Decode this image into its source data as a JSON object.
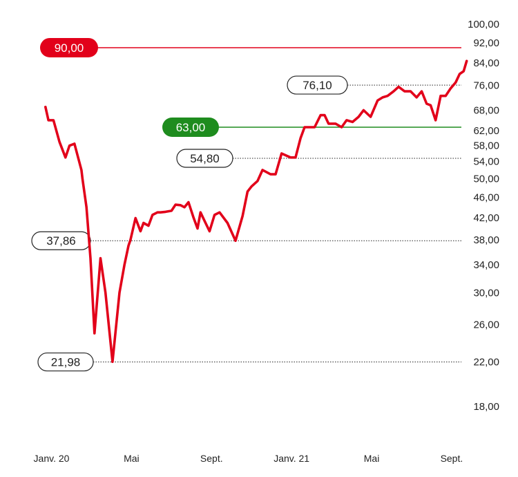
{
  "chart_data": {
    "type": "line",
    "scale": "log",
    "ylim": [
      18,
      100
    ],
    "y_ticks": [
      "100,00",
      "92,00",
      "84,00",
      "76,00",
      "68,00",
      "62,00",
      "58,00",
      "54,00",
      "50,00",
      "46,00",
      "42,00",
      "38,00",
      "34,00",
      "30,00",
      "26,00",
      "22,00",
      "18,00"
    ],
    "y_tick_values": [
      100,
      92,
      84,
      76,
      68,
      62,
      58,
      54,
      50,
      46,
      42,
      38,
      34,
      30,
      26,
      22,
      18
    ],
    "x_ticks": [
      "Janv. 20",
      "Mai",
      "Sept.",
      "Janv. 21",
      "Mai",
      "Sept."
    ],
    "x_tick_months": [
      0,
      4,
      8,
      12,
      16,
      20
    ],
    "x_range_months": [
      -0.5,
      20.9
    ],
    "colors": {
      "line": "#e2001a",
      "target_high": "#e2001a",
      "target_low": "#1e8c1e",
      "ref": "#222222"
    },
    "series": [
      {
        "x": [
          -0.3,
          -0.15,
          0.1,
          0.4,
          0.7,
          0.9,
          1.15,
          1.5,
          1.55,
          1.75,
          1.95,
          2.15,
          2.45,
          2.7,
          3.05,
          3.4,
          3.65,
          3.85,
          3.95,
          4.2,
          4.45,
          4.6,
          4.85,
          5.05,
          5.3,
          5.45,
          5.7,
          6.0,
          6.2,
          6.45,
          6.65,
          6.85,
          7.1,
          7.3,
          7.45,
          7.7,
          7.9,
          8.15,
          8.4,
          8.8,
          9.2,
          9.55,
          9.8,
          10.0,
          10.3,
          10.55,
          10.95,
          11.2,
          11.5,
          11.95,
          12.2,
          12.45,
          12.65,
          12.85,
          13.15,
          13.45,
          13.65,
          13.85,
          14.2,
          14.5,
          14.75,
          15.05,
          15.35,
          15.6,
          15.95,
          16.3,
          16.55,
          16.8,
          17.1,
          17.35,
          17.65,
          17.95,
          18.25,
          18.5,
          18.75,
          18.95,
          19.2,
          19.45,
          19.7,
          19.95,
          20.2,
          20.4,
          20.6,
          20.75
        ],
        "values": [
          69,
          65,
          65,
          59,
          55,
          58,
          58.5,
          52,
          50,
          44,
          35,
          25,
          35,
          30,
          22,
          30,
          34,
          37,
          38,
          41.9,
          39.5,
          41,
          40.5,
          42.5,
          43,
          43,
          43.1,
          43.3,
          44.5,
          44.4,
          44,
          45,
          42,
          40,
          43,
          41,
          39.5,
          42.5,
          43,
          41,
          37.86,
          42.3,
          47.2,
          48.3,
          49.5,
          52,
          51,
          51,
          56,
          55,
          55,
          60,
          63,
          63,
          63,
          66.5,
          66.5,
          64,
          64,
          63,
          65,
          64.5,
          66,
          68,
          66,
          71,
          72,
          72.5,
          74,
          75.5,
          74,
          74,
          72,
          74,
          70,
          69.5,
          65,
          72.5,
          72.5,
          75,
          77,
          80,
          81,
          84.8
        ]
      }
    ],
    "annotations": {
      "target_high": {
        "label": "90,00",
        "value": 90.0
      },
      "target_low": {
        "label": "63,00",
        "value": 63.0
      },
      "refs": [
        {
          "label": "76,10",
          "value": 76.1
        },
        {
          "label": "54,80",
          "value": 54.8
        },
        {
          "label": "37,86",
          "value": 37.86
        },
        {
          "label": "21,98",
          "value": 21.98
        }
      ]
    }
  }
}
